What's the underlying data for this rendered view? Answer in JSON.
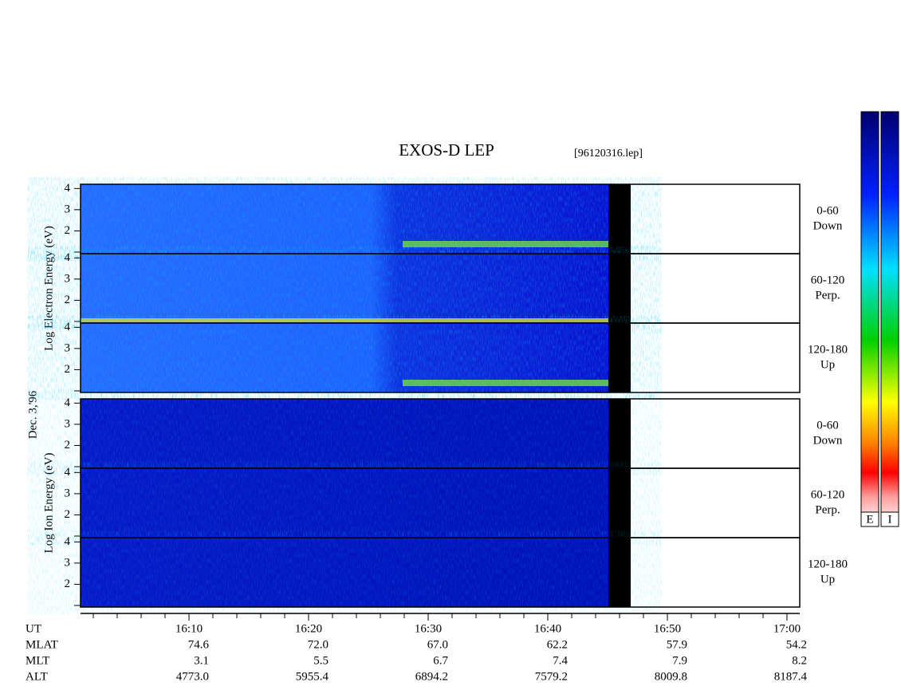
{
  "title": "EXOS-D LEP",
  "file": "[96120316.lep]",
  "date": "Dec. 3,'96",
  "groups": [
    {
      "label": "Log Electron Energy (eV)",
      "panels": [
        {
          "angle": "0-60",
          "direction": "Down"
        },
        {
          "angle": "60-120",
          "direction": "Perp."
        },
        {
          "angle": "120-180",
          "direction": "Up"
        }
      ]
    },
    {
      "label": "Log Ion Energy (eV)",
      "panels": [
        {
          "angle": "0-60",
          "direction": "Down"
        },
        {
          "angle": "60-120",
          "direction": "Perp."
        },
        {
          "angle": "120-180",
          "direction": "Up"
        }
      ]
    }
  ],
  "yticks": [
    2,
    3,
    4
  ],
  "ylim": [
    1,
    4.2
  ],
  "colorbar_labels": [
    "E",
    "I"
  ],
  "axis": {
    "row_labels": [
      "UT",
      "MLAT",
      "MLT",
      "ALT"
    ],
    "columns": [
      [
        "16:10",
        "74.6",
        "3.1",
        "4773.0"
      ],
      [
        "16:20",
        "72.0",
        "5.5",
        "5955.4"
      ],
      [
        "16:30",
        "67.0",
        "6.7",
        "6894.2"
      ],
      [
        "16:40",
        "62.2",
        "7.4",
        "7579.2"
      ],
      [
        "16:50",
        "57.9",
        "7.9",
        "8009.8"
      ],
      [
        "17:00",
        "54.2",
        "8.2",
        "8187.4"
      ]
    ]
  }
}
